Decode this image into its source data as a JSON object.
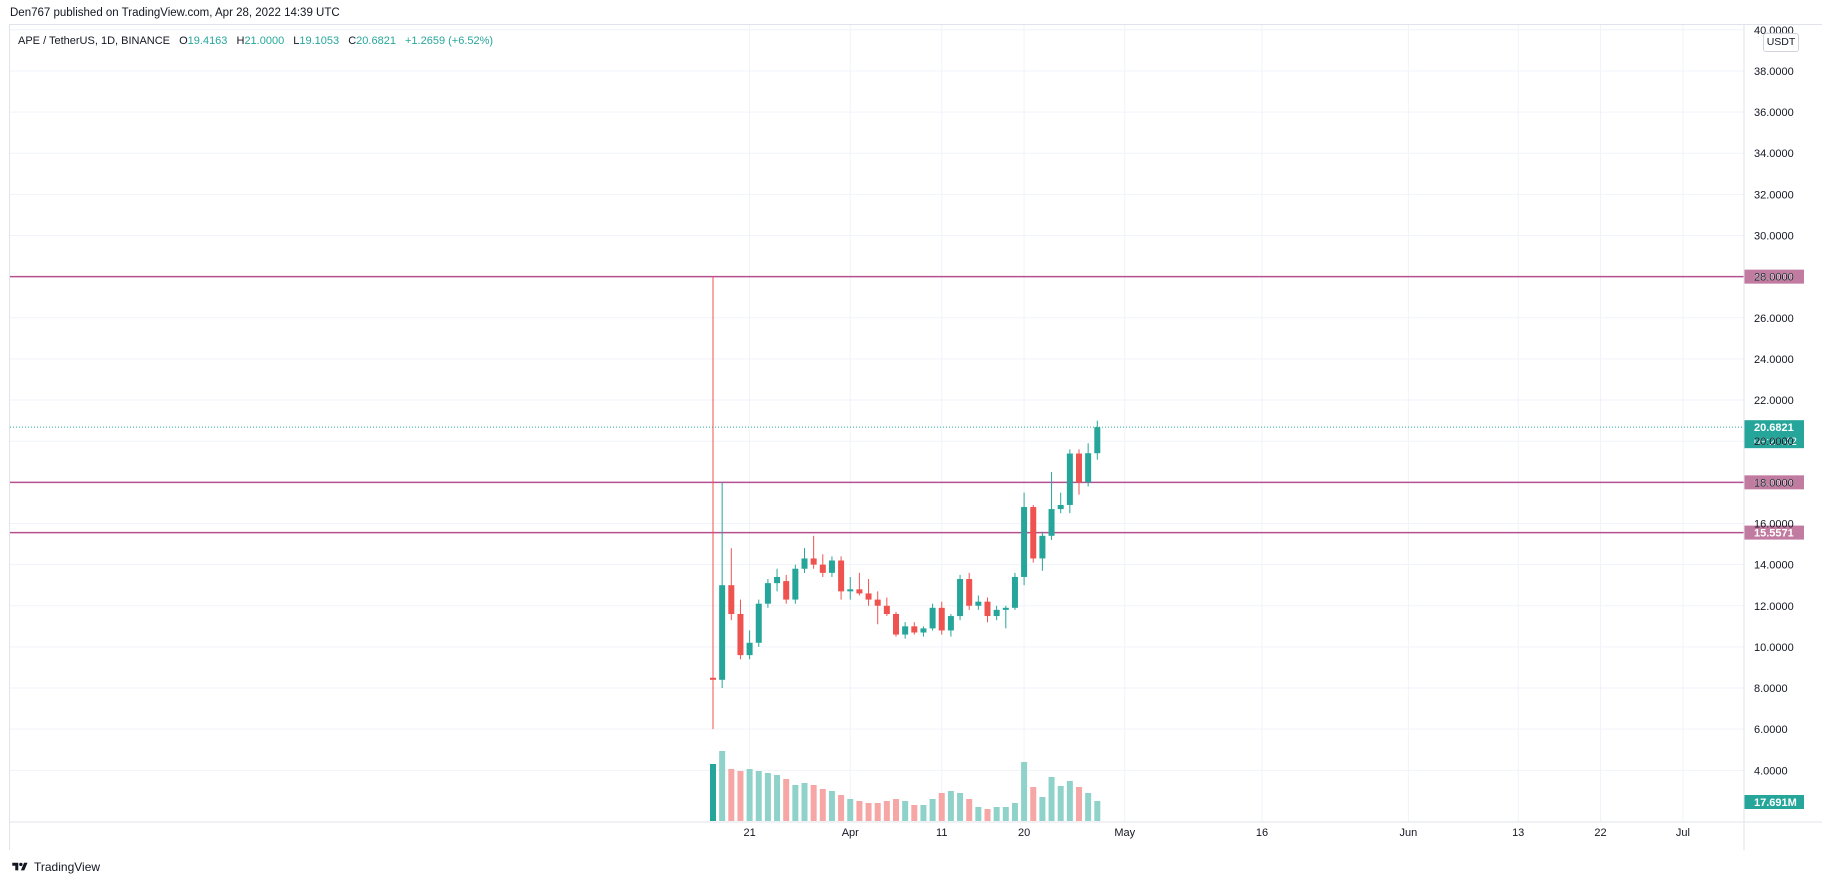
{
  "header": {
    "published": "Den767 published on TradingView.com, Apr 28, 2022 14:39 UTC"
  },
  "legend": {
    "symbol": "APE / TetherUS, 1D, BINANCE",
    "o_label": "O",
    "o": "19.4163",
    "h_label": "H",
    "h": "21.0000",
    "l_label": "L",
    "l": "19.1053",
    "c_label": "C",
    "c": "20.6821",
    "change": "+1.2659 (+6.52%)"
  },
  "price_axis": {
    "unit": "USDT",
    "current_price": "20.6821",
    "countdown": "09:20:42",
    "volume_label": "17.691M"
  },
  "colors": {
    "up": "#26a69a",
    "down": "#ef5350",
    "up_volume": "#8fd2c9",
    "down_volume": "#f6a6a5",
    "level_line": "#b5508f",
    "level_tag": "#c27ba0",
    "grid": "#f0f3fa"
  },
  "footer": {
    "brand": "TradingView"
  },
  "chart_data": {
    "type": "candlestick",
    "ylim": [
      3,
      40.5
    ],
    "y_ticks": [
      "4.0000",
      "6.0000",
      "8.0000",
      "10.0000",
      "12.0000",
      "14.0000",
      "16.0000",
      "18.0000",
      "20.0000",
      "22.0000",
      "24.0000",
      "26.0000",
      "28.0000",
      "30.0000",
      "32.0000",
      "34.0000",
      "36.0000",
      "38.0000",
      "40.0000"
    ],
    "x_ticks": [
      {
        "label": "21",
        "day": 4
      },
      {
        "label": "Apr",
        "day": 15
      },
      {
        "label": "11",
        "day": 25
      },
      {
        "label": "20",
        "day": 34
      },
      {
        "label": "May",
        "day": 45
      },
      {
        "label": "16",
        "day": 60
      },
      {
        "label": "Jun",
        "day": 76
      },
      {
        "label": "13",
        "day": 88
      },
      {
        "label": "22",
        "day": 97
      },
      {
        "label": "Jul",
        "day": 106
      }
    ],
    "horizontal_levels": [
      "28.0000",
      "18.0000",
      "15.5571"
    ],
    "candles": [
      {
        "date": "2022-03-17",
        "o": 8.5,
        "h": 28.0,
        "l": 6.0,
        "c": 8.4
      },
      {
        "date": "2022-03-18",
        "o": 8.4,
        "h": 18.0,
        "l": 8.0,
        "c": 13.0
      },
      {
        "date": "2022-03-19",
        "o": 13.0,
        "h": 14.8,
        "l": 11.3,
        "c": 11.6
      },
      {
        "date": "2022-03-20",
        "o": 11.6,
        "h": 12.3,
        "l": 9.4,
        "c": 9.6
      },
      {
        "date": "2022-03-21",
        "o": 9.6,
        "h": 10.8,
        "l": 9.4,
        "c": 10.2
      },
      {
        "date": "2022-03-22",
        "o": 10.2,
        "h": 12.3,
        "l": 10.0,
        "c": 12.1
      },
      {
        "date": "2022-03-23",
        "o": 12.1,
        "h": 13.3,
        "l": 11.9,
        "c": 13.1
      },
      {
        "date": "2022-03-24",
        "o": 13.1,
        "h": 13.8,
        "l": 12.7,
        "c": 13.4
      },
      {
        "date": "2022-03-25",
        "o": 13.2,
        "h": 13.5,
        "l": 12.1,
        "c": 12.3
      },
      {
        "date": "2022-03-26",
        "o": 12.3,
        "h": 14.0,
        "l": 12.1,
        "c": 13.8
      },
      {
        "date": "2022-03-27",
        "o": 13.8,
        "h": 14.8,
        "l": 13.6,
        "c": 14.3
      },
      {
        "date": "2022-03-28",
        "o": 14.3,
        "h": 15.4,
        "l": 13.8,
        "c": 14.0
      },
      {
        "date": "2022-03-29",
        "o": 14.0,
        "h": 14.5,
        "l": 13.4,
        "c": 13.6
      },
      {
        "date": "2022-03-30",
        "o": 13.6,
        "h": 14.4,
        "l": 13.4,
        "c": 14.2
      },
      {
        "date": "2022-03-31",
        "o": 14.2,
        "h": 14.4,
        "l": 12.3,
        "c": 12.7
      },
      {
        "date": "2022-04-01",
        "o": 12.7,
        "h": 13.4,
        "l": 12.3,
        "c": 12.8
      },
      {
        "date": "2022-04-02",
        "o": 12.8,
        "h": 13.6,
        "l": 12.5,
        "c": 12.6
      },
      {
        "date": "2022-04-03",
        "o": 12.6,
        "h": 13.3,
        "l": 12.0,
        "c": 12.3
      },
      {
        "date": "2022-04-04",
        "o": 12.3,
        "h": 12.7,
        "l": 11.1,
        "c": 12.0
      },
      {
        "date": "2022-04-05",
        "o": 12.0,
        "h": 12.4,
        "l": 11.5,
        "c": 11.6
      },
      {
        "date": "2022-04-06",
        "o": 11.6,
        "h": 11.7,
        "l": 10.5,
        "c": 10.6
      },
      {
        "date": "2022-04-07",
        "o": 10.6,
        "h": 11.2,
        "l": 10.4,
        "c": 11.0
      },
      {
        "date": "2022-04-08",
        "o": 11.0,
        "h": 11.2,
        "l": 10.6,
        "c": 10.7
      },
      {
        "date": "2022-04-09",
        "o": 10.7,
        "h": 11.0,
        "l": 10.5,
        "c": 10.9
      },
      {
        "date": "2022-04-10",
        "o": 10.9,
        "h": 12.1,
        "l": 10.8,
        "c": 11.9
      },
      {
        "date": "2022-04-11",
        "o": 11.9,
        "h": 12.2,
        "l": 10.6,
        "c": 10.8
      },
      {
        "date": "2022-04-12",
        "o": 10.8,
        "h": 11.6,
        "l": 10.5,
        "c": 11.5
      },
      {
        "date": "2022-04-13",
        "o": 11.5,
        "h": 13.5,
        "l": 11.3,
        "c": 13.3
      },
      {
        "date": "2022-04-14",
        "o": 13.3,
        "h": 13.6,
        "l": 11.8,
        "c": 12.0
      },
      {
        "date": "2022-04-15",
        "o": 12.0,
        "h": 12.5,
        "l": 11.8,
        "c": 12.2
      },
      {
        "date": "2022-04-16",
        "o": 12.2,
        "h": 12.4,
        "l": 11.2,
        "c": 11.5
      },
      {
        "date": "2022-04-17",
        "o": 11.5,
        "h": 12.0,
        "l": 11.3,
        "c": 11.8
      },
      {
        "date": "2022-04-18",
        "o": 11.8,
        "h": 12.0,
        "l": 10.9,
        "c": 11.9
      },
      {
        "date": "2022-04-19",
        "o": 11.9,
        "h": 13.6,
        "l": 11.8,
        "c": 13.4
      },
      {
        "date": "2022-04-20",
        "o": 13.4,
        "h": 17.5,
        "l": 13.0,
        "c": 16.8
      },
      {
        "date": "2022-04-21",
        "o": 16.8,
        "h": 16.9,
        "l": 14.1,
        "c": 14.3
      },
      {
        "date": "2022-04-22",
        "o": 14.3,
        "h": 15.6,
        "l": 13.7,
        "c": 15.4
      },
      {
        "date": "2022-04-23",
        "o": 15.4,
        "h": 18.5,
        "l": 15.2,
        "c": 16.7
      },
      {
        "date": "2022-04-24",
        "o": 16.7,
        "h": 17.5,
        "l": 16.5,
        "c": 16.9
      },
      {
        "date": "2022-04-25",
        "o": 16.9,
        "h": 19.6,
        "l": 16.5,
        "c": 19.4
      },
      {
        "date": "2022-04-26",
        "o": 19.4,
        "h": 19.6,
        "l": 17.4,
        "c": 18.0
      },
      {
        "date": "2022-04-27",
        "o": 18.0,
        "h": 19.9,
        "l": 17.8,
        "c": 19.4163
      },
      {
        "date": "2022-04-28",
        "o": 19.4163,
        "h": 21.0,
        "l": 19.1053,
        "c": 20.6821
      }
    ],
    "volume_heights": [
      57,
      70,
      52,
      50,
      52,
      50,
      48,
      46,
      42,
      36,
      38,
      36,
      32,
      30,
      26,
      22,
      20,
      18,
      18,
      20,
      22,
      20,
      16,
      16,
      22,
      28,
      30,
      28,
      22,
      14,
      12,
      14,
      14,
      18,
      59,
      34,
      24,
      44,
      35,
      40,
      34,
      28,
      20
    ]
  }
}
